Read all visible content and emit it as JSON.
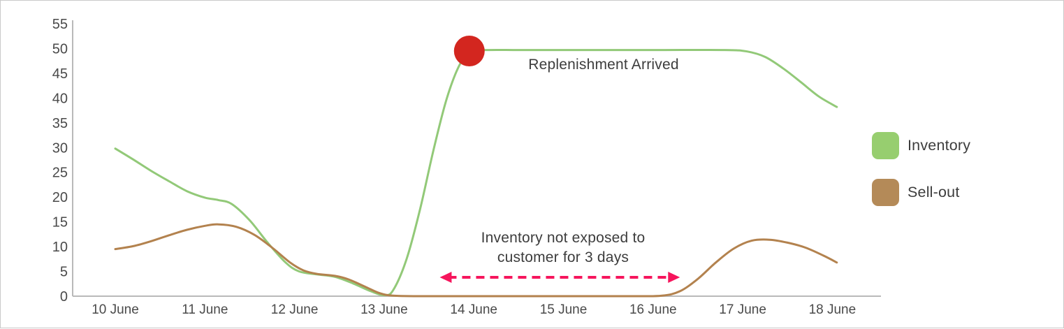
{
  "chart_data": {
    "type": "line",
    "title": "",
    "xlabel": "",
    "ylabel": "",
    "x_axis": {
      "tick_values": [
        10,
        11,
        12,
        13,
        14,
        15,
        16,
        17,
        18
      ],
      "tick_labels": [
        "10 June",
        "11 June",
        "12 June",
        "13 June",
        "14 June",
        "15 June",
        "16 June",
        "17 June",
        "18 June"
      ]
    },
    "y_axis": {
      "tick_values": [
        0,
        5,
        10,
        15,
        20,
        25,
        30,
        35,
        40,
        45,
        50,
        55
      ],
      "range": [
        0,
        55
      ]
    },
    "grid": "off",
    "series": [
      {
        "name": "Inventory",
        "color": "#92c978",
        "points": [
          [
            10.0,
            29.8
          ],
          [
            10.2,
            27.6
          ],
          [
            10.4,
            25.3
          ],
          [
            10.6,
            23.2
          ],
          [
            10.8,
            21.2
          ],
          [
            11.0,
            19.9
          ],
          [
            11.15,
            19.4
          ],
          [
            11.3,
            18.6
          ],
          [
            11.5,
            15.3
          ],
          [
            11.7,
            10.8
          ],
          [
            11.9,
            6.8
          ],
          [
            12.05,
            5.0
          ],
          [
            12.25,
            4.4
          ],
          [
            12.45,
            3.9
          ],
          [
            12.65,
            2.6
          ],
          [
            12.85,
            1.0
          ],
          [
            13.0,
            0.2
          ],
          [
            13.1,
            1.2
          ],
          [
            13.25,
            7.5
          ],
          [
            13.4,
            17.5
          ],
          [
            13.55,
            29.5
          ],
          [
            13.7,
            40.0
          ],
          [
            13.85,
            47.0
          ],
          [
            13.98,
            49.4
          ],
          [
            14.15,
            49.7
          ],
          [
            14.5,
            49.7
          ],
          [
            15.0,
            49.7
          ],
          [
            16.0,
            49.7
          ],
          [
            16.8,
            49.7
          ],
          [
            17.05,
            49.4
          ],
          [
            17.25,
            48.3
          ],
          [
            17.45,
            46.0
          ],
          [
            17.65,
            43.2
          ],
          [
            17.85,
            40.3
          ],
          [
            18.05,
            38.2
          ]
        ]
      },
      {
        "name": "Sell-out",
        "color": "#b3824e",
        "points": [
          [
            10.0,
            9.5
          ],
          [
            10.2,
            10.1
          ],
          [
            10.4,
            11.1
          ],
          [
            10.6,
            12.3
          ],
          [
            10.8,
            13.4
          ],
          [
            11.0,
            14.2
          ],
          [
            11.15,
            14.5
          ],
          [
            11.35,
            14.0
          ],
          [
            11.55,
            12.4
          ],
          [
            11.75,
            9.8
          ],
          [
            11.95,
            6.8
          ],
          [
            12.1,
            5.2
          ],
          [
            12.25,
            4.5
          ],
          [
            12.45,
            4.1
          ],
          [
            12.6,
            3.4
          ],
          [
            12.8,
            1.8
          ],
          [
            12.95,
            0.6
          ],
          [
            13.1,
            0.1
          ],
          [
            13.4,
            0
          ],
          [
            14.0,
            0
          ],
          [
            15.0,
            0
          ],
          [
            15.8,
            0
          ],
          [
            16.1,
            0.1
          ],
          [
            16.3,
            1.0
          ],
          [
            16.5,
            3.5
          ],
          [
            16.7,
            6.8
          ],
          [
            16.9,
            9.6
          ],
          [
            17.1,
            11.2
          ],
          [
            17.3,
            11.4
          ],
          [
            17.5,
            10.8
          ],
          [
            17.7,
            9.8
          ],
          [
            17.9,
            8.2
          ],
          [
            18.05,
            6.8
          ]
        ]
      }
    ],
    "markers": [
      {
        "name": "replenishment-dot",
        "x": 13.95,
        "y": 49.5,
        "radius": 22,
        "color": "#d3261f"
      }
    ],
    "annotations": {
      "replenishment": {
        "text": "Replenishment Arrived"
      },
      "gap": {
        "line1": "Inventory not exposed to",
        "line2": "customer for 3 days"
      },
      "gap_arrow": {
        "x_start": 13.62,
        "x_end": 16.3,
        "y": 3.8,
        "color": "#f6155c"
      }
    },
    "legend": {
      "position": "right",
      "items": [
        {
          "label": "Inventory",
          "color": "#97ce6f"
        },
        {
          "label": "Sell-out",
          "color": "#b48a58"
        }
      ]
    }
  },
  "colors": {
    "axis": "#b9b9b9",
    "tick_text": "#4a4a4a",
    "annotation_text": "#3d3d3d",
    "background": "#ffffff",
    "border": "#c9c9c9"
  }
}
